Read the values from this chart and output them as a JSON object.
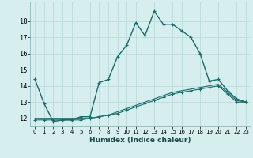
{
  "xlabel": "Humidex (Indice chaleur)",
  "background_color": "#d6eeed",
  "grid_color": "#b8d8d8",
  "line_color": "#1a6b6b",
  "x_ticks": [
    0,
    1,
    2,
    3,
    4,
    5,
    6,
    7,
    8,
    9,
    10,
    11,
    12,
    13,
    14,
    15,
    16,
    17,
    18,
    19,
    20,
    21,
    22,
    23
  ],
  "ylim": [
    11.5,
    19.2
  ],
  "yticks": [
    12,
    13,
    14,
    15,
    16,
    17,
    18
  ],
  "curve1_x": [
    0,
    1,
    2,
    3,
    4,
    5,
    6,
    7,
    8,
    9,
    10,
    11,
    12,
    13,
    14,
    15,
    16,
    17,
    18,
    19,
    20,
    21,
    22,
    23
  ],
  "curve1_y": [
    14.4,
    12.9,
    11.8,
    11.9,
    11.9,
    12.1,
    12.1,
    14.2,
    14.4,
    15.8,
    16.5,
    17.9,
    17.1,
    18.6,
    17.8,
    17.8,
    17.4,
    17.0,
    16.0,
    14.3,
    14.4,
    13.7,
    13.2,
    13.0
  ],
  "curve2_x": [
    0,
    1,
    2,
    3,
    4,
    5,
    6,
    7,
    8,
    9,
    10,
    11,
    12,
    13,
    14,
    15,
    16,
    17,
    18,
    19,
    20,
    21,
    22,
    23
  ],
  "curve2_y": [
    11.9,
    11.9,
    11.9,
    11.9,
    11.9,
    11.9,
    12.0,
    12.1,
    12.2,
    12.3,
    12.5,
    12.7,
    12.9,
    13.1,
    13.3,
    13.5,
    13.6,
    13.7,
    13.8,
    13.9,
    14.0,
    13.5,
    13.0,
    13.0
  ],
  "curve3_x": [
    0,
    1,
    2,
    3,
    4,
    5,
    6,
    7,
    8,
    9,
    10,
    11,
    12,
    13,
    14,
    15,
    16,
    17,
    18,
    19,
    20,
    21,
    22,
    23
  ],
  "curve3_y": [
    12.0,
    12.0,
    12.0,
    12.0,
    12.0,
    12.0,
    12.0,
    12.1,
    12.2,
    12.4,
    12.6,
    12.8,
    13.0,
    13.2,
    13.4,
    13.6,
    13.7,
    13.8,
    13.9,
    14.0,
    14.1,
    13.6,
    13.1,
    13.0
  ]
}
